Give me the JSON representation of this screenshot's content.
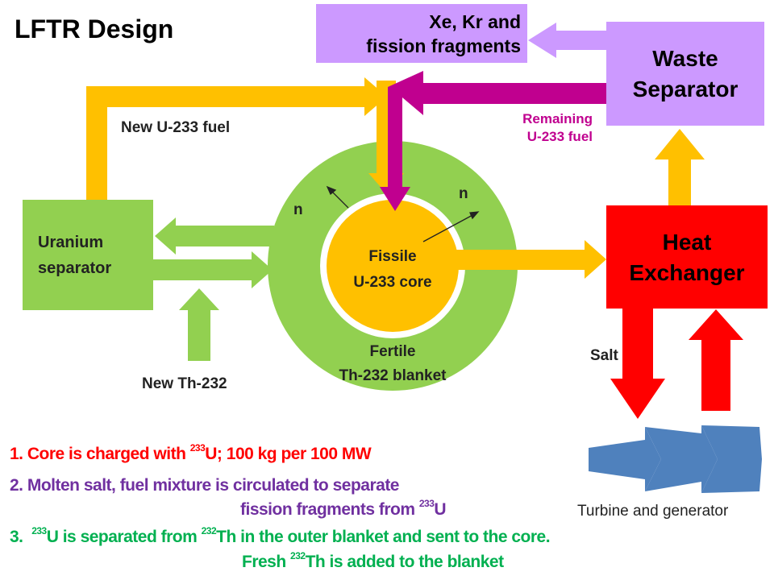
{
  "title": "LFTR Design",
  "colors": {
    "fertile_green": "#92d050",
    "fuel_orange": "#ffc000",
    "remaining_magenta": "#c0008f",
    "waste_lavender": "#cc99ff",
    "heat_red": "#ff0000",
    "turbine_blue": "#4f81bd",
    "note1": "#ff0000",
    "note2": "#7030a0",
    "note3": "#00b050"
  },
  "boxes": {
    "xe_kr": {
      "line1": "Xe, Kr and",
      "line2": "fission fragments"
    },
    "waste_separator": {
      "line1": "Waste",
      "line2": "Separator"
    },
    "heat_exchanger": {
      "line1": "Heat",
      "line2": "Exchanger"
    },
    "uranium_separator": {
      "line1": "Uranium",
      "line2": "separator"
    }
  },
  "labels": {
    "new_u233": "New U-233 fuel",
    "remaining_1": "Remaining",
    "remaining_2": "U-233 fuel",
    "n_left": "n",
    "n_right": "n",
    "core_1": "Fissile",
    "core_2": "U-233 core",
    "blanket_1": "Fertile",
    "blanket_2": "Th-232 blanket",
    "new_th232": "New Th-232",
    "salt": "Salt",
    "turbine": "Turbine and generator"
  },
  "notes": {
    "n1_a": "1. Core is charged with ",
    "n1_sup": "233",
    "n1_b": "U; 100 kg per 100 MW",
    "n2_line1": "2. Molten salt, fuel mixture is circulated to separate",
    "n2_a": "fission fragments from ",
    "n2_sup": "233",
    "n2_b": "U",
    "n3_a": "3.  ",
    "n3_sup1": "233",
    "n3_b": "U is separated from ",
    "n3_sup2": "232",
    "n3_c": "Th in the outer blanket and sent to the core.",
    "n3_d": "Fresh ",
    "n3_sup3": "232",
    "n3_e": "Th is added to the blanket"
  }
}
